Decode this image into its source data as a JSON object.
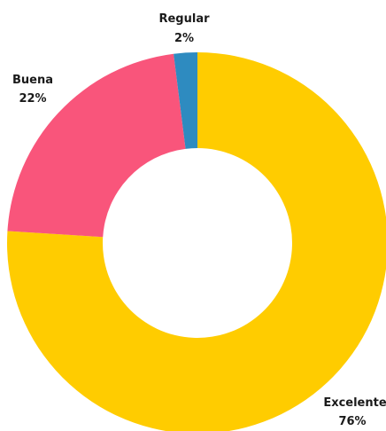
{
  "chart_data": {
    "type": "pie",
    "title": "",
    "donut": true,
    "slices": [
      {
        "label": "Excelente",
        "value": 76,
        "value_label": "76%",
        "color": "#FFCC00"
      },
      {
        "label": "Buena",
        "value": 22,
        "value_label": "22%",
        "color": "#F9557B"
      },
      {
        "label": "Regular",
        "value": 2,
        "value_label": "2%",
        "color": "#2E8BC0"
      }
    ]
  }
}
